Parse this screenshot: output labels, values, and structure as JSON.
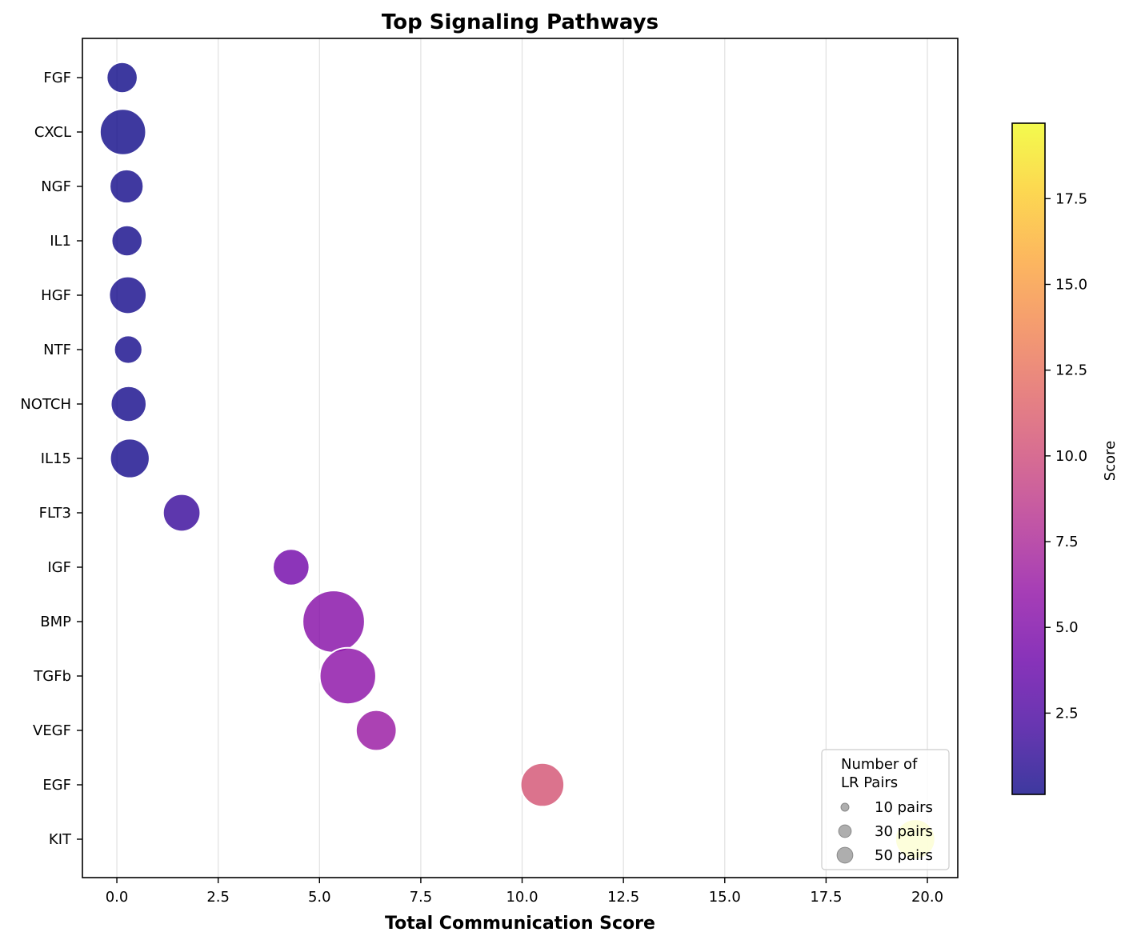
{
  "chart_data": {
    "type": "scatter",
    "title": "Top Signaling Pathways",
    "xlabel": "Total Communication Score",
    "ylabel": "",
    "xlim": [
      -0.85,
      20.75
    ],
    "x_ticks": [
      0.0,
      2.5,
      5.0,
      7.5,
      10.0,
      12.5,
      15.0,
      17.5,
      20.0
    ],
    "x_tick_labels": [
      "0.0",
      "2.5",
      "5.0",
      "7.5",
      "10.0",
      "12.5",
      "15.0",
      "17.5",
      "20.0"
    ],
    "grid": "x-axis vertical gridlines",
    "categories": [
      "FGF",
      "CXCL",
      "NGF",
      "IL1",
      "HGF",
      "NTF",
      "NOTCH",
      "IL15",
      "FLT3",
      "IGF",
      "BMP",
      "TGFb",
      "VEGF",
      "EGF",
      "KIT"
    ],
    "series": [
      {
        "points": [
          {
            "category": "FGF",
            "x": 0.13,
            "score": 0.13,
            "lr_pairs": 30
          },
          {
            "category": "CXCL",
            "x": 0.15,
            "score": 0.15,
            "lr_pairs": 67
          },
          {
            "category": "NGF",
            "x": 0.24,
            "score": 0.24,
            "lr_pairs": 36
          },
          {
            "category": "IL1",
            "x": 0.25,
            "score": 0.25,
            "lr_pairs": 30
          },
          {
            "category": "HGF",
            "x": 0.27,
            "score": 0.27,
            "lr_pairs": 44
          },
          {
            "category": "NTF",
            "x": 0.28,
            "score": 0.28,
            "lr_pairs": 25
          },
          {
            "category": "NOTCH",
            "x": 0.29,
            "score": 0.29,
            "lr_pairs": 40
          },
          {
            "category": "IL15",
            "x": 0.32,
            "score": 0.32,
            "lr_pairs": 49
          },
          {
            "category": "FLT3",
            "x": 1.6,
            "score": 1.6,
            "lr_pairs": 44
          },
          {
            "category": "IGF",
            "x": 4.3,
            "score": 4.3,
            "lr_pairs": 42
          },
          {
            "category": "BMP",
            "x": 5.35,
            "score": 5.35,
            "lr_pairs": 122
          },
          {
            "category": "TGFb",
            "x": 5.7,
            "score": 5.7,
            "lr_pairs": 100
          },
          {
            "category": "VEGF",
            "x": 6.4,
            "score": 6.4,
            "lr_pairs": 52
          },
          {
            "category": "EGF",
            "x": 10.5,
            "score": 10.5,
            "lr_pairs": 60
          },
          {
            "category": "KIT",
            "x": 19.7,
            "score": 19.7,
            "lr_pairs": 50
          }
        ]
      }
    ],
    "legend": {
      "title_lines": [
        "Number of",
        "LR Pairs"
      ],
      "entries": [
        {
          "label": "10 pairs",
          "lr_pairs": 10
        },
        {
          "label": "30 pairs",
          "lr_pairs": 30
        },
        {
          "label": "50 pairs",
          "lr_pairs": 50
        }
      ],
      "placement": "lower right"
    },
    "colorbar": {
      "label": "Score",
      "colormap": "plasma",
      "range": [
        0.13,
        19.7
      ],
      "ticks": [
        2.5,
        5.0,
        7.5,
        10.0,
        12.5,
        15.0,
        17.5
      ],
      "tick_labels": [
        "2.5",
        "5.0",
        "7.5",
        "10.0",
        "12.5",
        "15.0",
        "17.5"
      ]
    }
  }
}
